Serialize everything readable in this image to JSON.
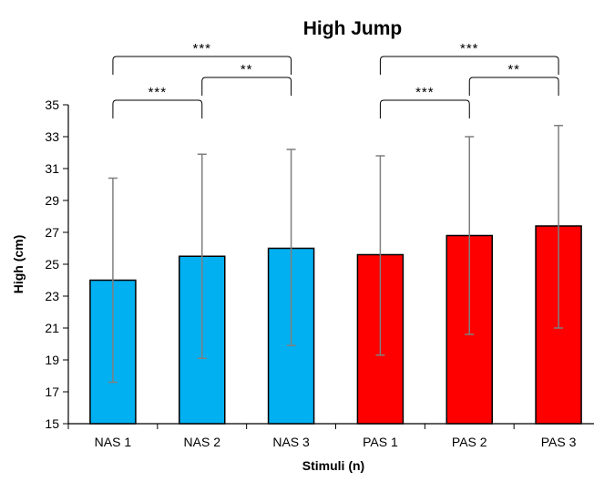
{
  "chart_data": {
    "type": "bar",
    "title": "High Jump",
    "xlabel": "Stimuli (n)",
    "ylabel": "High (cm)",
    "ylim": [
      15,
      35
    ],
    "yticks": [
      15,
      17,
      19,
      21,
      23,
      25,
      27,
      29,
      31,
      33,
      35
    ],
    "categories": [
      "NAS 1",
      "NAS 2",
      "NAS 3",
      "PAS 1",
      "PAS 2",
      "PAS 3"
    ],
    "values": [
      24.0,
      25.5,
      26.0,
      25.6,
      26.8,
      27.4
    ],
    "error_low": [
      17.6,
      19.1,
      19.9,
      19.3,
      20.6,
      21.0
    ],
    "error_high": [
      30.4,
      31.9,
      32.2,
      31.8,
      33.0,
      33.7
    ],
    "bar_colors": [
      "#00b0f0",
      "#00b0f0",
      "#00b0f0",
      "#ff0000",
      "#ff0000",
      "#ff0000"
    ],
    "grid": false,
    "legend": "none",
    "significance": [
      {
        "from": "NAS 1",
        "to": "NAS 3",
        "label": "***"
      },
      {
        "from": "NAS 2",
        "to": "NAS 3",
        "label": "**"
      },
      {
        "from": "NAS 1",
        "to": "NAS 2",
        "label": "***"
      },
      {
        "from": "PAS 1",
        "to": "PAS 3",
        "label": "***"
      },
      {
        "from": "PAS 2",
        "to": "PAS 3",
        "label": "**"
      },
      {
        "from": "PAS 1",
        "to": "PAS 2",
        "label": "***"
      }
    ]
  }
}
